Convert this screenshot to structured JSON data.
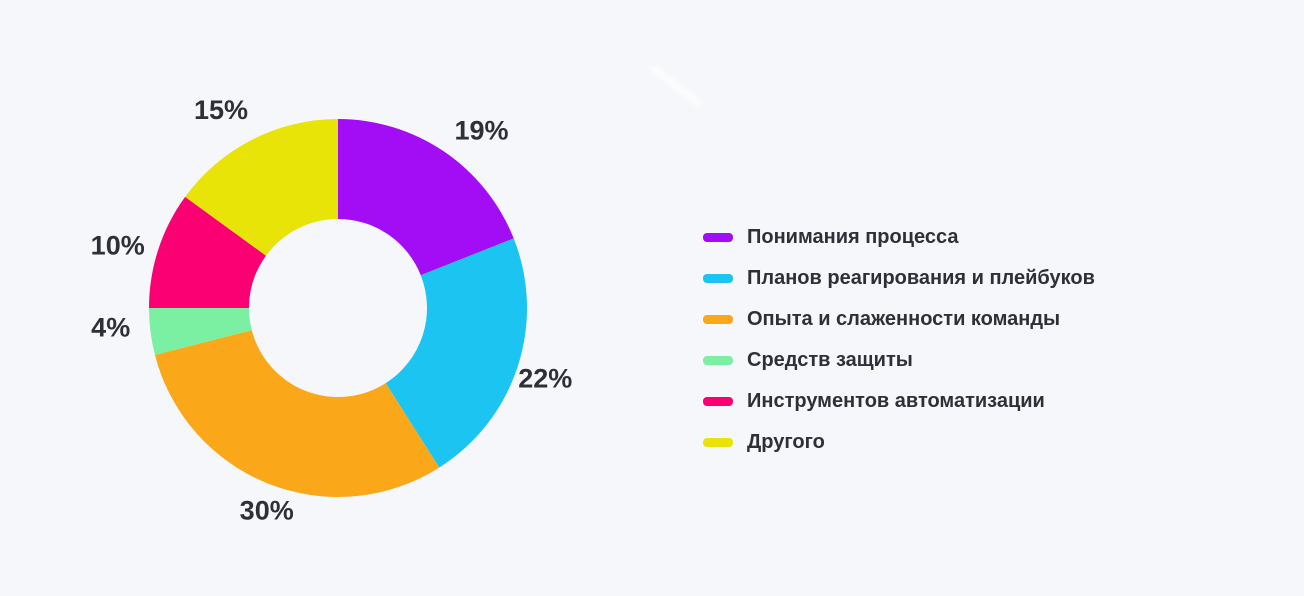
{
  "page": {
    "background_color": "#F6F7FA",
    "text_color": "#2E3038"
  },
  "chart_data": {
    "type": "pie",
    "variant": "donut",
    "title": "",
    "direction": "clockwise",
    "start_angle_deg": 0,
    "inner_radius_ratio": 0.47,
    "legend_position": "right",
    "unit": "%",
    "categories": [
      "Понимания процесса",
      "Планов реагирования и плейбуков",
      "Опыта и слаженности команды",
      "Средств защиты",
      "Инструментов автоматизации",
      "Другого"
    ],
    "values": [
      19,
      22,
      30,
      4,
      10,
      15
    ],
    "data_labels": [
      "19%",
      "22%",
      "30%",
      "4%",
      "10%",
      "15%"
    ],
    "colors": [
      "#A30DF5",
      "#1CC4F2",
      "#FAA819",
      "#7BF0A2",
      "#FA0073",
      "#E8E408"
    ]
  }
}
